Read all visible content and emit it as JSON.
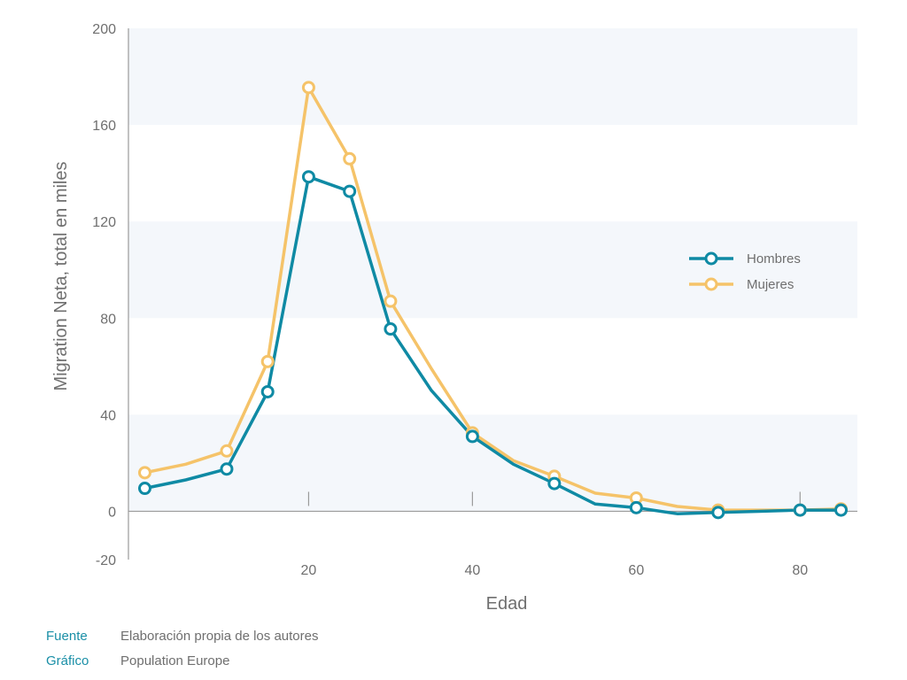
{
  "chart_data": {
    "type": "line",
    "xlabel": "Edad",
    "ylabel": "Migration Neta, total en miles",
    "xlim": [
      -2,
      87
    ],
    "ylim": [
      -20,
      200
    ],
    "xticks": [
      20,
      40,
      60,
      80
    ],
    "yticks": [
      -20,
      0,
      40,
      80,
      120,
      160,
      200
    ],
    "grid": "horizontal bands",
    "legend_position": "right",
    "series": [
      {
        "name": "Hombres",
        "color": "#0f8aa4",
        "x": [
          0,
          5,
          10,
          15,
          20,
          25,
          30,
          35,
          40,
          45,
          50,
          55,
          60,
          65,
          70,
          75,
          80,
          85
        ],
        "values": [
          9.5,
          13,
          17.5,
          49.5,
          138.5,
          132.5,
          75.5,
          50,
          31,
          19.5,
          11.5,
          3,
          1.5,
          -1,
          -0.5,
          0,
          0.5,
          0.5
        ],
        "markers": [
          true,
          false,
          true,
          true,
          true,
          true,
          true,
          false,
          true,
          false,
          true,
          false,
          true,
          false,
          true,
          false,
          true,
          true
        ]
      },
      {
        "name": "Mujeres",
        "color": "#f5c369",
        "x": [
          0,
          5,
          10,
          15,
          20,
          25,
          30,
          35,
          40,
          45,
          50,
          55,
          60,
          65,
          70,
          75,
          80,
          85
        ],
        "values": [
          16,
          19.5,
          25,
          62,
          175.5,
          146,
          87,
          59,
          32.5,
          21,
          14.5,
          7.5,
          5.5,
          2,
          0.5,
          0.5,
          0.5,
          1
        ],
        "markers": [
          true,
          false,
          true,
          true,
          true,
          true,
          true,
          false,
          true,
          false,
          true,
          false,
          true,
          false,
          true,
          false,
          true,
          true
        ]
      }
    ]
  },
  "footer": {
    "source_label": "Fuente",
    "source_value": "Elaboración propia de los autores",
    "graphic_label": "Gráfico",
    "graphic_value": "Population Europe"
  }
}
